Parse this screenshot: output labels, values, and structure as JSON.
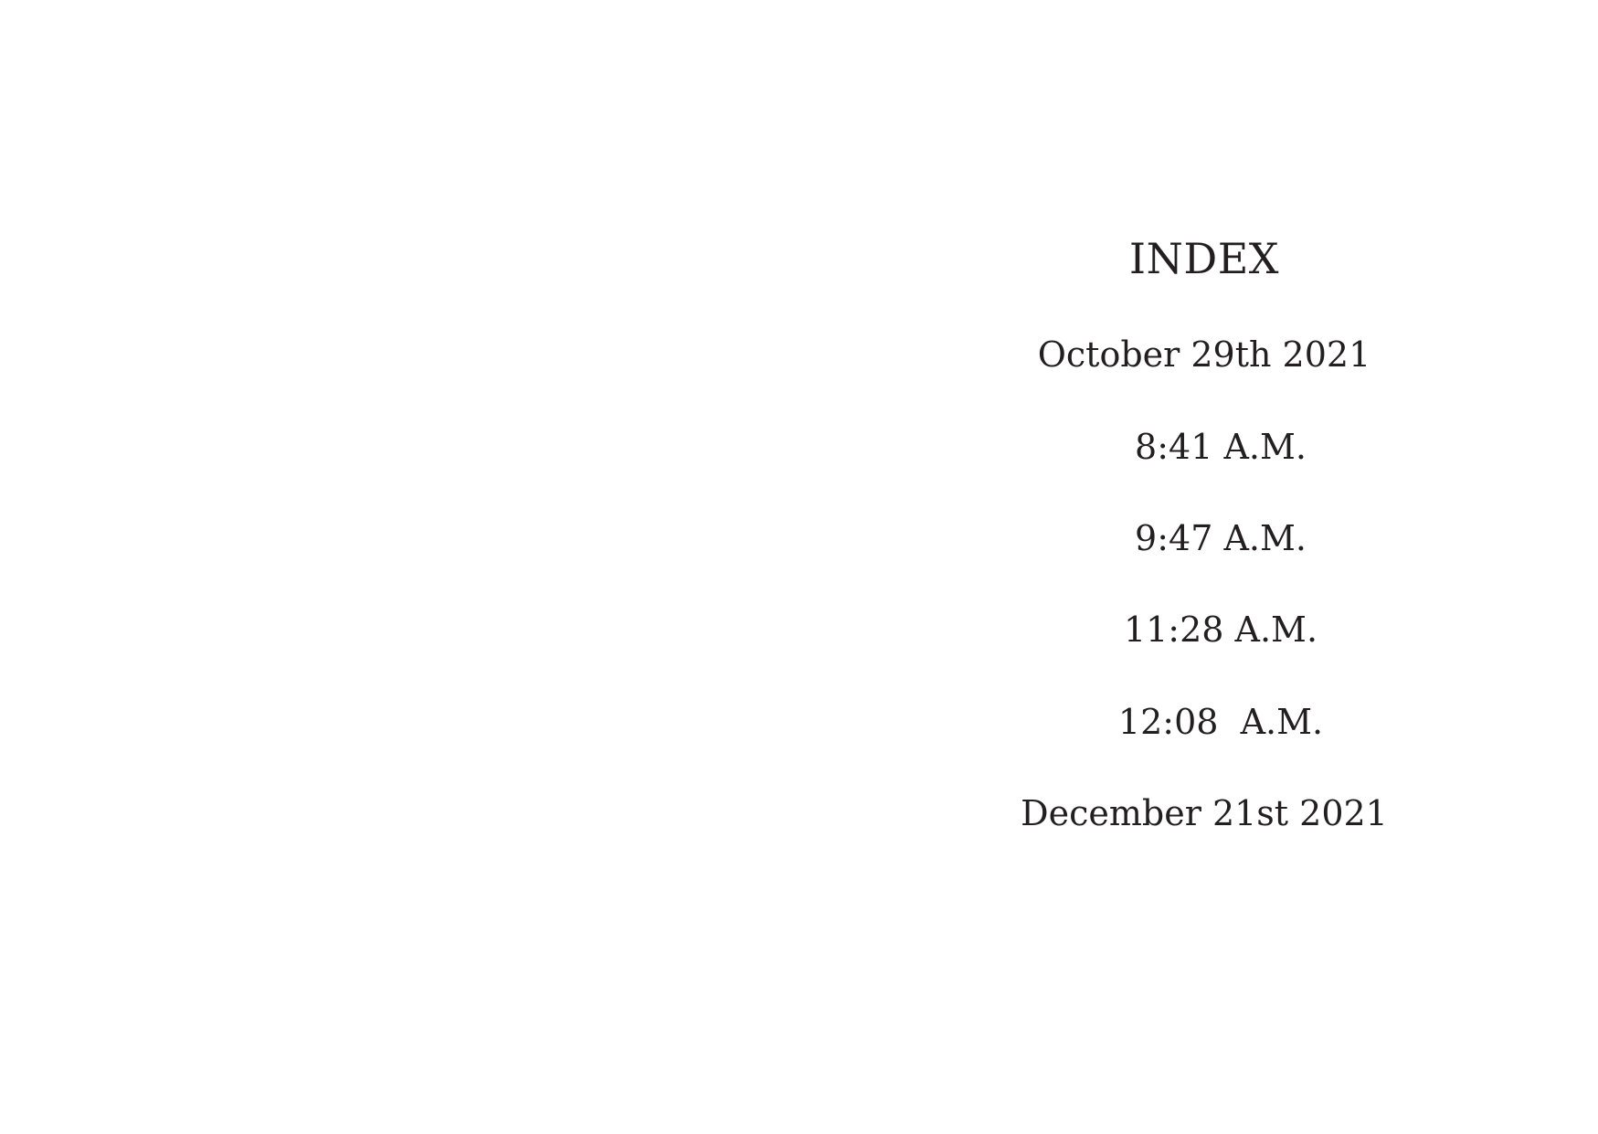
{
  "index": {
    "title": "INDEX",
    "entries": [
      "October 29th 2021",
      "8:41 A.M.",
      "9:47 A.M.",
      "11:28 A.M.",
      "12:08  A.M.",
      "December 21st 2021"
    ]
  }
}
